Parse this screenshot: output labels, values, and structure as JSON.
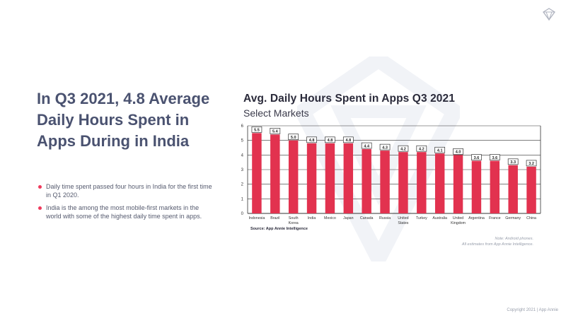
{
  "headline": "In Q3 2021, 4.8 Average Daily Hours Spent in Apps During in India",
  "bullets": [
    "Daily time spent passed four hours in India for the first time in Q1 2020.",
    "India is the among the most mobile-first markets in the world with some of the highest daily time spent in apps."
  ],
  "source": "Source: App Annie Intelligence",
  "note": {
    "line1": "Note: Android phones.",
    "line2": "All estimates from App Annie Intelligence."
  },
  "copyright": "Copyright 2021 | App Annie",
  "colors": {
    "bar": "#e2324f",
    "headline": "#4a5270",
    "bullet_dot": "#ef3a5d"
  },
  "chart_data": {
    "type": "bar",
    "title": "Avg. Daily Hours Spent in Apps Q3 2021",
    "subtitle": "Select Markets",
    "categories": [
      "Indonesia",
      "Brazil",
      "South Korea",
      "India",
      "Mexico",
      "Japan",
      "Canada",
      "Russia",
      "United States",
      "Turkey",
      "Australia",
      "United Kingdom",
      "Argentina",
      "France",
      "Germany",
      "China"
    ],
    "category_lines": [
      [
        "Indonesia"
      ],
      [
        "Brazil"
      ],
      [
        "South",
        "Korea"
      ],
      [
        "India"
      ],
      [
        "Mexico"
      ],
      [
        "Japan"
      ],
      [
        "Canada"
      ],
      [
        "Russia"
      ],
      [
        "United",
        "States"
      ],
      [
        "Turkey"
      ],
      [
        "Australia"
      ],
      [
        "United",
        "Kingdom"
      ],
      [
        "Argentina"
      ],
      [
        "France"
      ],
      [
        "Germany"
      ],
      [
        "China"
      ]
    ],
    "values": [
      5.5,
      5.4,
      5.0,
      4.8,
      4.8,
      4.8,
      4.4,
      4.3,
      4.2,
      4.2,
      4.1,
      4.0,
      3.6,
      3.6,
      3.3,
      3.2
    ],
    "data_labels": [
      "5.5",
      "5.4",
      "5.0",
      "4.8",
      "4.8",
      "4.8",
      "4.4",
      "4.3",
      "4.2",
      "4.2",
      "4.1",
      "4.0",
      "3.6",
      "3.6",
      "3.3",
      "3.2"
    ],
    "ylim": [
      0,
      6
    ],
    "yticks": [
      0,
      1,
      2,
      3,
      4,
      5,
      6
    ],
    "grid": true,
    "legend": "none"
  }
}
